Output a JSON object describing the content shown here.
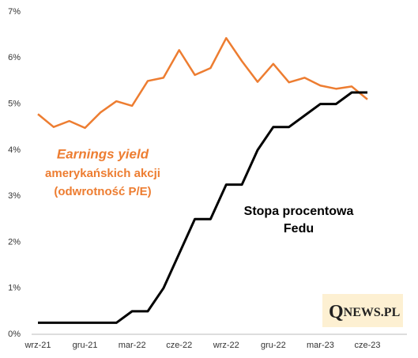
{
  "chart_data": {
    "type": "line",
    "categories": [
      "wrz-21",
      null,
      null,
      "gru-21",
      null,
      null,
      "mar-22",
      null,
      null,
      "cze-22",
      null,
      null,
      "wrz-22",
      null,
      null,
      "gru-22",
      null,
      null,
      "mar-23",
      null,
      null,
      "cze-23"
    ],
    "series": [
      {
        "name": "Earnings yield amerykańskich akcji (odwrotność P/E)",
        "color": "#ed7d31",
        "values": [
          4.78,
          4.5,
          4.63,
          4.48,
          4.82,
          5.06,
          4.96,
          5.5,
          5.57,
          6.17,
          5.63,
          5.78,
          6.43,
          5.93,
          5.48,
          5.87,
          5.47,
          5.57,
          5.4,
          5.33,
          5.38,
          5.1
        ]
      },
      {
        "name": "Stopa procentowa Fedu",
        "color": "#000000",
        "values": [
          0.25,
          0.25,
          0.25,
          0.25,
          0.25,
          0.25,
          0.5,
          0.5,
          1.0,
          1.75,
          2.5,
          2.5,
          3.25,
          3.25,
          4.0,
          4.5,
          4.5,
          4.75,
          5.0,
          5.0,
          5.25,
          5.25
        ]
      }
    ],
    "annotations": {
      "earnings": [
        "Earnings yield",
        "amerykańskich akcji",
        "(odwrotność P/E)"
      ],
      "fed": [
        "Stopa procentowa",
        "Fedu"
      ]
    },
    "logo": {
      "initial": "Q",
      "rest": "NEWS.PL"
    },
    "ylim": [
      0,
      7
    ],
    "yticks": [
      {
        "value": 0,
        "label": "0%"
      },
      {
        "value": 1,
        "label": "1%"
      },
      {
        "value": 2,
        "label": "2%"
      },
      {
        "value": 3,
        "label": "3%"
      },
      {
        "value": 4,
        "label": "4%"
      },
      {
        "value": 5,
        "label": "5%"
      },
      {
        "value": 6,
        "label": "6%"
      },
      {
        "value": 7,
        "label": "7%"
      }
    ],
    "grid": false
  }
}
